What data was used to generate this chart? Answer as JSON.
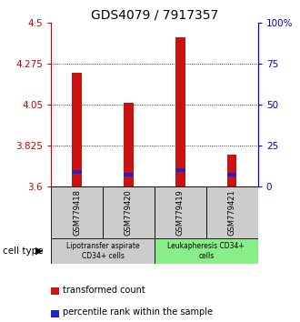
{
  "title": "GDS4079 / 7917357",
  "samples": [
    "GSM779418",
    "GSM779420",
    "GSM779419",
    "GSM779421"
  ],
  "red_values": [
    4.225,
    4.06,
    4.42,
    3.775
  ],
  "blue_values": [
    3.67,
    3.655,
    3.68,
    3.655
  ],
  "y_min": 3.6,
  "y_max": 4.5,
  "y_ticks": [
    3.6,
    3.825,
    4.05,
    4.275,
    4.5
  ],
  "y_tick_labels": [
    "3.6",
    "3.825",
    "4.05",
    "4.275",
    "4.5"
  ],
  "y2_ticks": [
    0,
    25,
    50,
    75,
    100
  ],
  "y2_tick_labels": [
    "0",
    "25",
    "50",
    "75",
    "100%"
  ],
  "groups": [
    {
      "label": "Lipotransfer aspirate\nCD34+ cells",
      "color": "#cccccc",
      "start": 0,
      "end": 2
    },
    {
      "label": "Leukapheresis CD34+\ncells",
      "color": "#88ee88",
      "start": 2,
      "end": 4
    }
  ],
  "cell_type_label": "cell type",
  "legend_red": "transformed count",
  "legend_blue": "percentile rank within the sample",
  "bar_width": 0.18,
  "red_color": "#cc1111",
  "blue_color": "#2222cc",
  "axis_color_left": "#cc0000",
  "axis_color_right": "#0000cc",
  "title_fontsize": 10,
  "tick_fontsize": 7.5,
  "legend_fontsize": 7,
  "grid_color": "#000000"
}
